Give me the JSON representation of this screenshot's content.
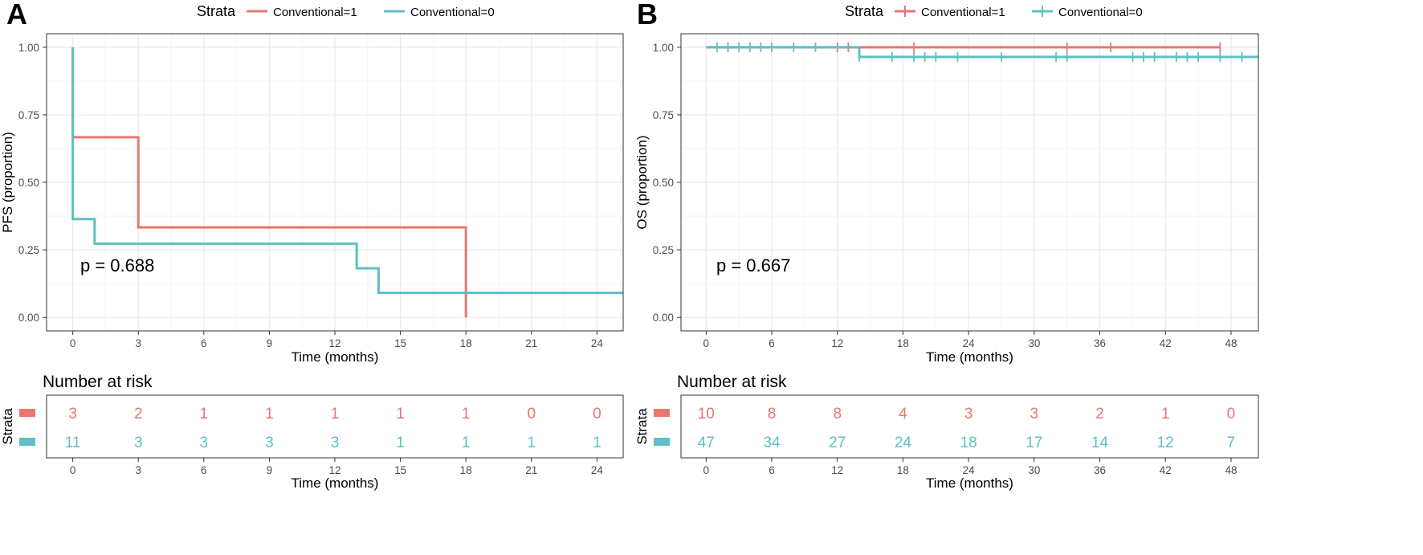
{
  "colors": {
    "conv1": "#E7776F",
    "conv0": "#5EC0C4"
  },
  "legend": {
    "title": "Strata",
    "items": [
      "Conventional=1",
      "Conventional=0"
    ]
  },
  "risk_table": {
    "title": "Number at risk",
    "strata_label": "Strata"
  },
  "panels": [
    {
      "letter": "A",
      "p_value": "p = 0.688"
    },
    {
      "letter": "B",
      "p_value": "p = 0.667"
    }
  ],
  "chart_data": [
    {
      "type": "line",
      "subtype": "kaplan-meier",
      "xlabel": "Time (months)",
      "ylabel": "PFS (proportion)",
      "xlim": [
        -1.2,
        25.2
      ],
      "ylim": [
        -0.05,
        1.05
      ],
      "x_ticks": [
        0,
        3,
        6,
        9,
        12,
        15,
        18,
        21,
        24
      ],
      "y_ticks": [
        0,
        0.25,
        0.5,
        0.75,
        1.0
      ],
      "y_tick_labels": [
        "0.00",
        "0.25",
        "0.50",
        "0.75",
        "1.00"
      ],
      "grid": true,
      "legend_position": "top",
      "series": [
        {
          "name": "Conventional=1",
          "steps": [
            [
              0,
              1.0
            ],
            [
              0,
              0.667
            ],
            [
              3,
              0.333
            ],
            [
              18,
              0.0
            ]
          ],
          "end": 18,
          "censors": []
        },
        {
          "name": "Conventional=0",
          "steps": [
            [
              0,
              1.0
            ],
            [
              0,
              0.364
            ],
            [
              1,
              0.273
            ],
            [
              13,
              0.182
            ],
            [
              14,
              0.091
            ]
          ],
          "end": 25.2,
          "censors": []
        }
      ],
      "risk": {
        "times": [
          0,
          3,
          6,
          9,
          12,
          15,
          18,
          21,
          24
        ],
        "rows": [
          {
            "name": "Conventional=1",
            "values": [
              3,
              2,
              1,
              1,
              1,
              1,
              1,
              0,
              0
            ]
          },
          {
            "name": "Conventional=0",
            "values": [
              11,
              3,
              3,
              3,
              3,
              1,
              1,
              1,
              1
            ]
          }
        ]
      }
    },
    {
      "type": "line",
      "subtype": "kaplan-meier",
      "xlabel": "Time (months)",
      "ylabel": "OS (proportion)",
      "xlim": [
        -2.3,
        50.5
      ],
      "ylim": [
        -0.05,
        1.05
      ],
      "x_ticks": [
        0,
        6,
        12,
        18,
        24,
        30,
        36,
        42,
        48
      ],
      "y_ticks": [
        0,
        0.25,
        0.5,
        0.75,
        1.0
      ],
      "y_tick_labels": [
        "0.00",
        "0.25",
        "0.50",
        "0.75",
        "1.00"
      ],
      "grid": true,
      "legend_position": "top",
      "series": [
        {
          "name": "Conventional=1",
          "steps": [
            [
              0,
              1.0
            ]
          ],
          "end": 47,
          "censors": [
            2,
            12,
            13,
            19,
            33,
            37,
            47
          ]
        },
        {
          "name": "Conventional=0",
          "steps": [
            [
              0,
              1.0
            ],
            [
              14,
              0.964
            ]
          ],
          "end": 50.5,
          "censors": [
            1,
            2,
            3,
            4,
            5,
            6,
            8,
            10,
            14,
            17,
            19,
            20,
            21,
            23,
            27,
            32,
            33,
            39,
            40,
            41,
            43,
            44,
            45,
            47,
            49
          ]
        }
      ],
      "risk": {
        "times": [
          0,
          6,
          12,
          18,
          24,
          30,
          36,
          42,
          48
        ],
        "rows": [
          {
            "name": "Conventional=1",
            "values": [
              10,
              8,
              8,
              4,
              3,
              3,
              2,
              1,
              0
            ]
          },
          {
            "name": "Conventional=0",
            "values": [
              47,
              34,
              27,
              24,
              18,
              17,
              14,
              12,
              7
            ]
          }
        ]
      }
    }
  ]
}
